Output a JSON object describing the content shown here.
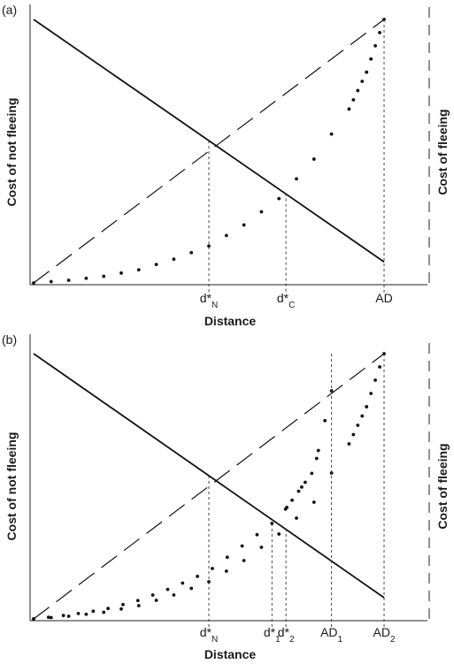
{
  "chart_data": [
    {
      "panel_label": "(a)",
      "type": "line",
      "xlabel": "Distance",
      "ylabel_left": "Cost of not fleeing",
      "ylabel_right": "Cost of fleeing",
      "xlim": [
        0,
        100
      ],
      "ylim": [
        0,
        100
      ],
      "series": [
        {
          "style": "solid",
          "points": [
            [
              0,
              100
            ],
            [
              100,
              8
            ]
          ]
        },
        {
          "style": "dashed",
          "points": [
            [
              0,
              0
            ],
            [
              100,
              100
            ]
          ]
        },
        {
          "style": "dotted",
          "points": [
            [
              0,
              0
            ],
            [
              10,
              1
            ],
            [
              20,
              2.5
            ],
            [
              30,
              5
            ],
            [
              40,
              9
            ],
            [
              50,
              14
            ],
            [
              60,
              22
            ],
            [
              70,
              32
            ],
            [
              80,
              47
            ],
            [
              90,
              66
            ],
            [
              95,
              80
            ],
            [
              100,
              100
            ]
          ]
        }
      ],
      "markers": [
        {
          "label": "d*",
          "sub": "N",
          "x": 50,
          "y": 54
        },
        {
          "label": "d*",
          "sub": "C",
          "x": 72,
          "y": 34
        },
        {
          "label": "AD",
          "sub": "",
          "x": 100,
          "y": 100
        }
      ]
    },
    {
      "panel_label": "(b)",
      "type": "line",
      "xlabel": "Distance",
      "ylabel_left": "Cost of not fleeing",
      "ylabel_right": "Cost of fleeing",
      "xlim": [
        0,
        100
      ],
      "ylim": [
        0,
        100
      ],
      "series": [
        {
          "style": "solid",
          "points": [
            [
              0,
              100
            ],
            [
              100,
              8
            ]
          ]
        },
        {
          "style": "dashed",
          "points": [
            [
              0,
              0
            ],
            [
              100,
              100
            ]
          ]
        },
        {
          "style": "dotted",
          "points": [
            [
              0,
              0
            ],
            [
              10,
              1.5
            ],
            [
              20,
              3.5
            ],
            [
              30,
              7
            ],
            [
              40,
              12
            ],
            [
              50,
              18
            ],
            [
              60,
              28
            ],
            [
              70,
              38
            ],
            [
              80,
              56
            ],
            [
              85,
              86
            ]
          ]
        },
        {
          "style": "dotted",
          "points": [
            [
              0,
              0
            ],
            [
              10,
              1
            ],
            [
              20,
              2.5
            ],
            [
              30,
              5
            ],
            [
              40,
              9
            ],
            [
              50,
              14
            ],
            [
              60,
              22
            ],
            [
              70,
              32
            ],
            [
              80,
              44
            ],
            [
              90,
              66
            ],
            [
              95,
              80
            ],
            [
              100,
              100
            ]
          ]
        }
      ],
      "markers": [
        {
          "label": "d*",
          "sub": "N",
          "x": 50,
          "y": 54
        },
        {
          "label": "d*",
          "sub": "1",
          "x": 68,
          "y": 36
        },
        {
          "label": "d*",
          "sub": "2",
          "x": 72,
          "y": 34
        },
        {
          "label": "AD",
          "sub": "1",
          "x": 85,
          "y": 100
        },
        {
          "label": "AD",
          "sub": "2",
          "x": 100,
          "y": 100
        }
      ]
    }
  ]
}
